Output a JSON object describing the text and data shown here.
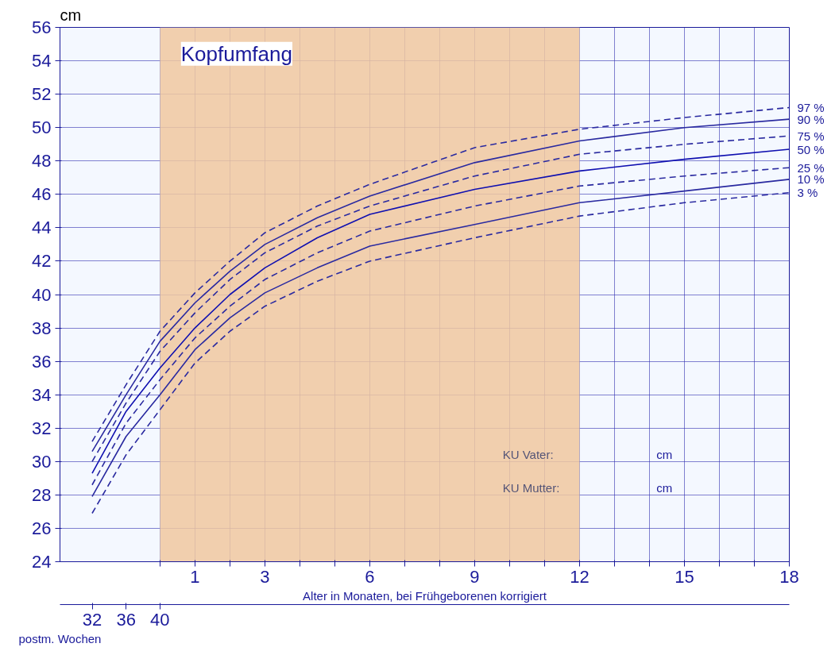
{
  "chart_data": {
    "type": "line",
    "title": "Kopfumfang",
    "xlabel": "Alter in Monaten, bei Frühgeborenen korrigiert",
    "ylabel": "cm",
    "annotations": [
      "KU Vater:",
      "cm",
      "KU Mutter:",
      "cm"
    ],
    "x": [
      -1.94,
      -0.97,
      0,
      1,
      2,
      3,
      4.5,
      6,
      9,
      12,
      15,
      18
    ],
    "xlim": [
      -2.86,
      18
    ],
    "x2label": "postm. Wochen",
    "x2lim": [
      28.2,
      114.3
    ],
    "x2ticks": [
      32,
      36,
      40
    ],
    "xticks": [
      {
        "value": 0,
        "label": null
      },
      1,
      {
        "value": 2,
        "label": null
      },
      3,
      {
        "value": 4,
        "label": null
      },
      {
        "value": 5,
        "label": null
      },
      6,
      {
        "value": 7,
        "label": null
      },
      {
        "value": 8,
        "label": null
      },
      9,
      {
        "value": 10,
        "label": null
      },
      {
        "value": 11,
        "label": null
      },
      12,
      {
        "value": 13,
        "label": null
      },
      {
        "value": 14,
        "label": null
      },
      15,
      {
        "value": 16,
        "label": null
      },
      {
        "value": 17,
        "label": null
      },
      18
    ],
    "ylim": [
      24,
      56
    ],
    "yticks": [
      24,
      26,
      28,
      30,
      32,
      34,
      36,
      38,
      40,
      42,
      44,
      46,
      48,
      50,
      52,
      54,
      56
    ],
    "grid": true,
    "bands": [
      {
        "axis": "x",
        "from": 0,
        "to": 12,
        "color": "#f0c8a0"
      }
    ],
    "series": [
      {
        "name": "97 %",
        "color": "#2a2aa0",
        "line_style": "dashed",
        "values": [
          31.2,
          34.6,
          37.8,
          40.1,
          42.0,
          43.7,
          45.3,
          46.6,
          48.8,
          49.9,
          50.6,
          51.2
        ]
      },
      {
        "name": "90 %",
        "color": "#2a2aa0",
        "line_style": "solid",
        "values": [
          30.6,
          34.0,
          37.2,
          39.5,
          41.4,
          43.0,
          44.6,
          45.9,
          47.9,
          49.2,
          50.0,
          50.5
        ]
      },
      {
        "name": "75 %",
        "color": "#2a2aa0",
        "line_style": "dashed",
        "values": [
          30.0,
          33.5,
          36.6,
          38.9,
          40.9,
          42.5,
          44.1,
          45.3,
          47.1,
          48.4,
          49.0,
          49.5
        ]
      },
      {
        "name": "50 %",
        "color": "#1010b0",
        "line_style": "solid",
        "values": [
          29.3,
          33.0,
          35.6,
          38.0,
          40.0,
          41.6,
          43.4,
          44.8,
          46.3,
          47.4,
          48.1,
          48.7
        ]
      },
      {
        "name": "25 %",
        "color": "#2a2aa0",
        "line_style": "dashed",
        "values": [
          28.6,
          32.3,
          34.9,
          37.4,
          39.3,
          40.9,
          42.5,
          43.8,
          45.3,
          46.5,
          47.1,
          47.6
        ]
      },
      {
        "name": "10 %",
        "color": "#2a2aa0",
        "line_style": "solid",
        "values": [
          27.9,
          31.5,
          34.0,
          36.7,
          38.6,
          40.1,
          41.6,
          42.9,
          44.2,
          45.5,
          46.2,
          46.9
        ]
      },
      {
        "name": "3 %",
        "color": "#2a2aa0",
        "line_style": "dashed",
        "values": [
          26.9,
          30.4,
          33.1,
          35.9,
          37.8,
          39.3,
          40.8,
          42.0,
          43.4,
          44.7,
          45.5,
          46.1
        ]
      }
    ]
  }
}
